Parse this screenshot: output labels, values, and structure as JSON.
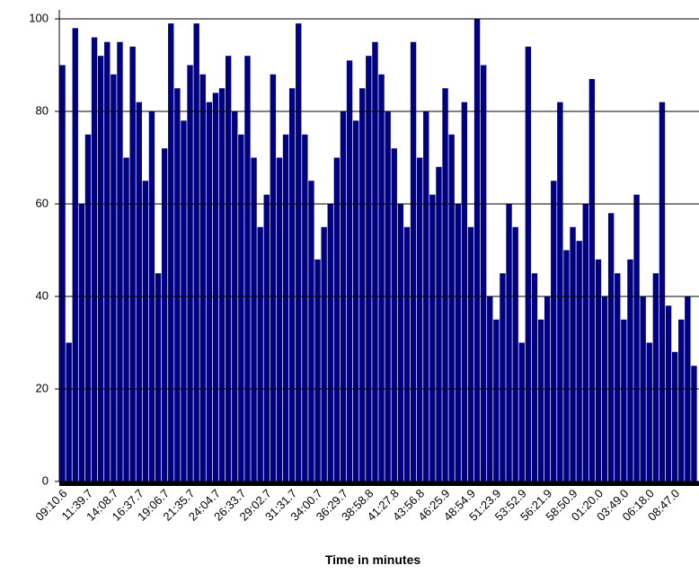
{
  "chart_data": {
    "type": "bar",
    "x_label": "Time in minutes",
    "categories": [
      "09:10.6",
      null,
      null,
      null,
      "11:39.7",
      null,
      null,
      null,
      "14:08.7",
      null,
      null,
      null,
      "16:37.7",
      null,
      null,
      null,
      "19:06.7",
      null,
      null,
      null,
      "21:35.7",
      null,
      null,
      null,
      "24:04.7",
      null,
      null,
      null,
      "26:33.7",
      null,
      null,
      null,
      "29:02.7",
      null,
      null,
      null,
      "31:31.7",
      null,
      null,
      null,
      "34:00.7",
      null,
      null,
      null,
      "36:29.7",
      null,
      null,
      null,
      "38:58.8",
      null,
      null,
      null,
      "41:27.8",
      null,
      null,
      null,
      "43:56.8",
      null,
      null,
      null,
      "46:25.9",
      null,
      null,
      null,
      "48:54.9",
      null,
      null,
      null,
      "51:23.9",
      null,
      null,
      null,
      "53:52.9",
      null,
      null,
      null,
      "56:21.9",
      null,
      null,
      null,
      "58:50.9",
      null,
      null,
      null,
      "01:20.0",
      null,
      null,
      null,
      "03:49.0",
      null,
      null,
      null,
      "06:18.0",
      null,
      null,
      null,
      "08:47.0",
      null,
      null,
      null
    ],
    "values": [
      90,
      30,
      98,
      60,
      75,
      96,
      92,
      95,
      88,
      95,
      70,
      94,
      82,
      65,
      80,
      45,
      72,
      99,
      85,
      78,
      90,
      99,
      88,
      82,
      84,
      85,
      92,
      80,
      75,
      92,
      70,
      55,
      62,
      88,
      70,
      75,
      85,
      99,
      75,
      65,
      48,
      55,
      60,
      70,
      80,
      91,
      78,
      85,
      92,
      95,
      88,
      80,
      72,
      60,
      55,
      95,
      70,
      80,
      62,
      68,
      85,
      75,
      60,
      82,
      55,
      100,
      90,
      40,
      35,
      45,
      60,
      55,
      30,
      94,
      45,
      35,
      40,
      65,
      82,
      50,
      55,
      52,
      60,
      87,
      48,
      40,
      58,
      45,
      35,
      48,
      62,
      40,
      30,
      45,
      82,
      38,
      28,
      35,
      40,
      25
    ],
    "color": "#000080",
    "ylim": [
      0,
      100
    ],
    "yticks": [
      0,
      20,
      40,
      60,
      80,
      100
    ],
    "grid": true
  }
}
